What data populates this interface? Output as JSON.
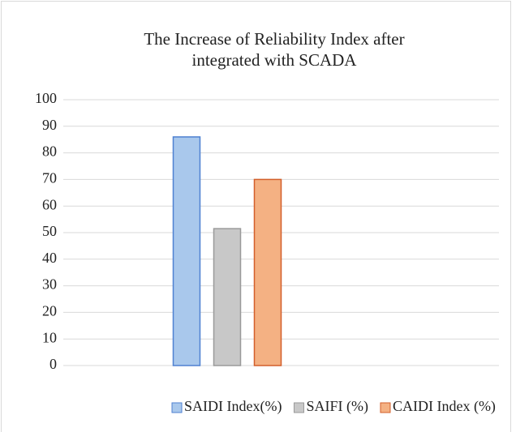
{
  "chart_data": {
    "type": "bar",
    "title": [
      "The Increase of Reliability Index after",
      "integrated with SCADA"
    ],
    "categories": [
      null
    ],
    "series": [
      {
        "name": "SAIDI Index(%)",
        "color": "#a9c8ec",
        "edgecolor": "#4f81d1",
        "values": [
          86
        ]
      },
      {
        "name": "SAIFI (%)",
        "color": "#c8c8c8",
        "edgecolor": "#9a9a9a",
        "values": [
          51.5
        ]
      },
      {
        "name": "CAIDI Index (%)",
        "color": "#f4b183",
        "edgecolor": "#d35f2b",
        "values": [
          70
        ]
      }
    ],
    "ylim": [
      0,
      100
    ],
    "yticks": [
      0,
      10,
      20,
      30,
      40,
      50,
      60,
      70,
      80,
      90,
      100
    ],
    "grid": true,
    "legend": "bottom"
  }
}
